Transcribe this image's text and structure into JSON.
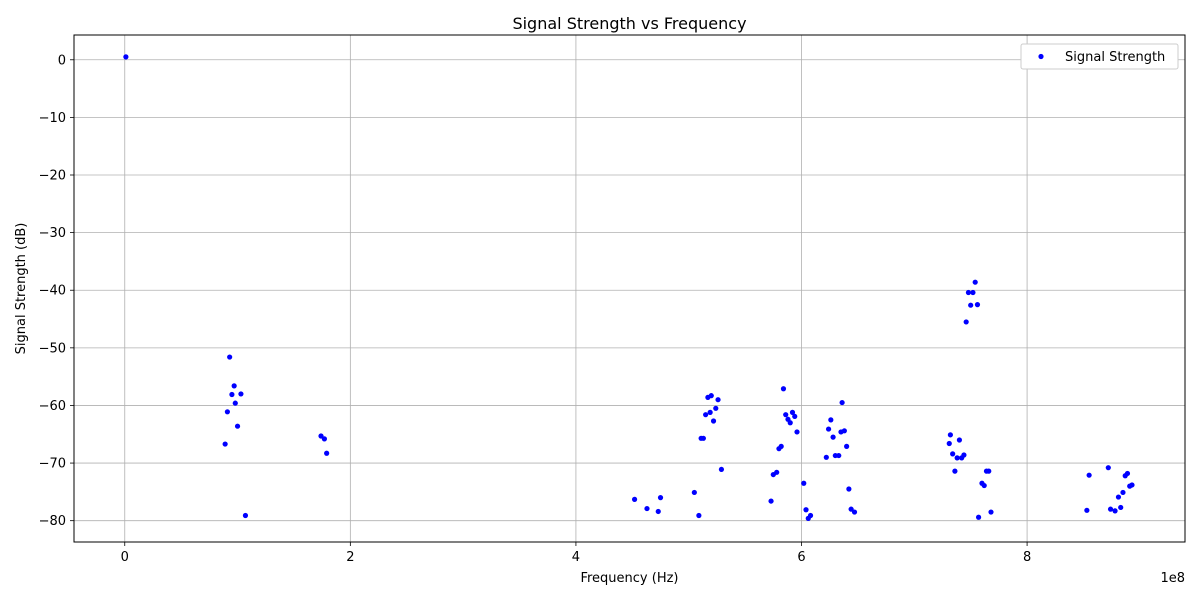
{
  "chart_data": {
    "type": "scatter",
    "title": "Signal Strength vs Frequency",
    "xlabel": "Frequency (Hz)",
    "ylabel": "Signal Strength (dB)",
    "x_offset_label": "1e8",
    "xlim": [
      -0.45,
      9.4
    ],
    "ylim": [
      -83.7,
      4.3
    ],
    "x_scale_factor": 100000000,
    "x_ticks": [
      {
        "value": 0,
        "label": "0"
      },
      {
        "value": 2,
        "label": "2"
      },
      {
        "value": 4,
        "label": "4"
      },
      {
        "value": 6,
        "label": "6"
      },
      {
        "value": 8,
        "label": "8"
      }
    ],
    "y_ticks": [
      {
        "value": 0,
        "label": "0"
      },
      {
        "value": -10,
        "label": "−10"
      },
      {
        "value": -20,
        "label": "−20"
      },
      {
        "value": -30,
        "label": "−30"
      },
      {
        "value": -40,
        "label": "−40"
      },
      {
        "value": -50,
        "label": "−50"
      },
      {
        "value": -60,
        "label": "−60"
      },
      {
        "value": -70,
        "label": "−70"
      },
      {
        "value": -80,
        "label": "−80"
      }
    ],
    "grid": true,
    "legend_position": "top-right",
    "series": [
      {
        "name": "Signal Strength",
        "color": "#0000ff",
        "marker": "dot",
        "points": [
          [
            0.01,
            0.5
          ],
          [
            0.89,
            -66.7
          ],
          [
            0.91,
            -61.1
          ],
          [
            0.93,
            -51.6
          ],
          [
            0.95,
            -58.1
          ],
          [
            0.97,
            -56.6
          ],
          [
            0.98,
            -59.6
          ],
          [
            1.0,
            -63.6
          ],
          [
            1.03,
            -58.0
          ],
          [
            1.07,
            -79.1
          ],
          [
            1.74,
            -65.3
          ],
          [
            1.77,
            -65.8
          ],
          [
            1.79,
            -68.3
          ],
          [
            4.52,
            -76.3
          ],
          [
            4.63,
            -77.9
          ],
          [
            4.73,
            -78.4
          ],
          [
            4.75,
            -76.0
          ],
          [
            5.05,
            -75.1
          ],
          [
            5.09,
            -79.1
          ],
          [
            5.11,
            -65.7
          ],
          [
            5.13,
            -65.7
          ],
          [
            5.15,
            -61.6
          ],
          [
            5.17,
            -58.6
          ],
          [
            5.19,
            -61.2
          ],
          [
            5.2,
            -58.3
          ],
          [
            5.22,
            -62.7
          ],
          [
            5.24,
            -60.5
          ],
          [
            5.26,
            -59.0
          ],
          [
            5.29,
            -71.1
          ],
          [
            5.73,
            -76.6
          ],
          [
            5.75,
            -72.0
          ],
          [
            5.78,
            -71.6
          ],
          [
            5.8,
            -67.5
          ],
          [
            5.82,
            -67.1
          ],
          [
            5.84,
            -57.1
          ],
          [
            5.86,
            -61.6
          ],
          [
            5.88,
            -62.4
          ],
          [
            5.9,
            -63.0
          ],
          [
            5.92,
            -61.2
          ],
          [
            5.94,
            -61.9
          ],
          [
            5.96,
            -64.6
          ],
          [
            6.02,
            -73.5
          ],
          [
            6.04,
            -78.1
          ],
          [
            6.06,
            -79.6
          ],
          [
            6.08,
            -79.1
          ],
          [
            6.22,
            -69.0
          ],
          [
            6.24,
            -64.1
          ],
          [
            6.26,
            -62.5
          ],
          [
            6.28,
            -65.5
          ],
          [
            6.3,
            -68.7
          ],
          [
            6.33,
            -68.7
          ],
          [
            6.35,
            -64.6
          ],
          [
            6.36,
            -59.5
          ],
          [
            6.38,
            -64.4
          ],
          [
            6.4,
            -67.1
          ],
          [
            6.42,
            -74.5
          ],
          [
            6.44,
            -78.0
          ],
          [
            6.47,
            -78.5
          ],
          [
            7.31,
            -66.6
          ],
          [
            7.32,
            -65.1
          ],
          [
            7.34,
            -68.4
          ],
          [
            7.36,
            -71.4
          ],
          [
            7.38,
            -69.1
          ],
          [
            7.4,
            -66.0
          ],
          [
            7.42,
            -69.1
          ],
          [
            7.44,
            -68.6
          ],
          [
            7.46,
            -45.5
          ],
          [
            7.48,
            -40.4
          ],
          [
            7.5,
            -42.6
          ],
          [
            7.52,
            -40.4
          ],
          [
            7.54,
            -38.6
          ],
          [
            7.56,
            -42.5
          ],
          [
            7.57,
            -79.4
          ],
          [
            7.6,
            -73.5
          ],
          [
            7.62,
            -73.9
          ],
          [
            7.64,
            -71.4
          ],
          [
            7.66,
            -71.4
          ],
          [
            7.68,
            -78.5
          ],
          [
            8.53,
            -78.2
          ],
          [
            8.55,
            -72.1
          ],
          [
            8.72,
            -70.8
          ],
          [
            8.74,
            -78.0
          ],
          [
            8.78,
            -78.3
          ],
          [
            8.81,
            -75.9
          ],
          [
            8.83,
            -77.7
          ],
          [
            8.85,
            -75.1
          ],
          [
            8.87,
            -72.2
          ],
          [
            8.89,
            -71.8
          ],
          [
            8.91,
            -74.0
          ],
          [
            8.93,
            -73.8
          ]
        ]
      }
    ]
  }
}
